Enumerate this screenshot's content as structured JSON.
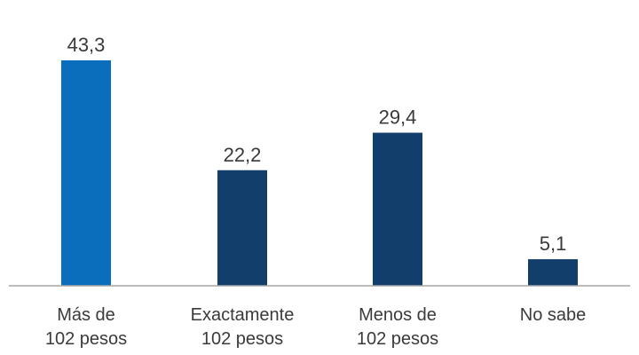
{
  "chart_data": {
    "type": "bar",
    "categories": [
      [
        "Más de",
        "102 pesos"
      ],
      [
        "Exactamente",
        "102 pesos"
      ],
      [
        "Menos de",
        "102 pesos"
      ],
      [
        "No sabe"
      ]
    ],
    "values": [
      43.3,
      22.2,
      29.4,
      5.1
    ],
    "value_labels": [
      "43,3",
      "22,2",
      "29,4",
      "5,1"
    ],
    "bar_colors": [
      "#0a6ebd",
      "#123e6b",
      "#123e6b",
      "#123e6b"
    ],
    "ylim": [
      0,
      43.3
    ],
    "grid": false,
    "legend": "none",
    "title": "",
    "xlabel": "",
    "ylabel": ""
  },
  "colors": {
    "axis": "#a6a6a6",
    "text": "#3a3a3a",
    "highlight": "#0a6ebd",
    "bar": "#123e6b"
  }
}
